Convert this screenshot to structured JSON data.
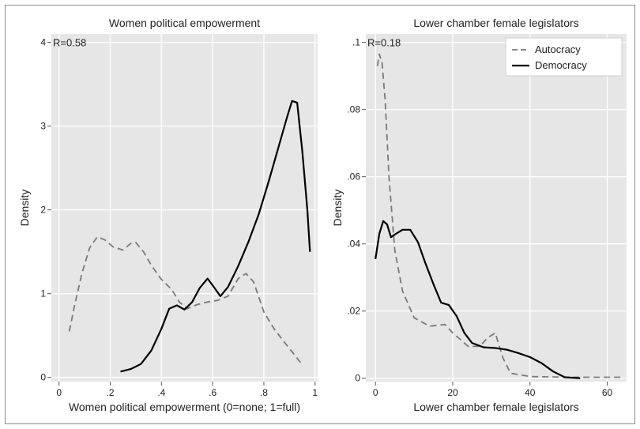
{
  "chart_data": [
    {
      "type": "line",
      "title": "Women political empowerment",
      "xlabel": "Women political empowerment (0=none; 1=full)",
      "ylabel": "Density",
      "annotation": "R=0.58",
      "xlim": [
        -0.03,
        1.01
      ],
      "ylim": [
        -0.05,
        4.1
      ],
      "xticks": [
        0,
        0.2,
        0.4,
        0.6,
        0.8,
        1
      ],
      "xtick_labels": [
        "0",
        ".2",
        ".4",
        ".6",
        ".8",
        "1"
      ],
      "yticks": [
        0,
        1,
        2,
        3,
        4
      ],
      "ytick_labels": [
        "0",
        "1",
        "2",
        "3",
        "4"
      ],
      "grid": true,
      "series": [
        {
          "name": "Autocracy",
          "style": "dashed",
          "color": "#7a7a7a",
          "points": [
            [
              0.04,
              0.55
            ],
            [
              0.06,
              0.85
            ],
            [
              0.09,
              1.25
            ],
            [
              0.12,
              1.55
            ],
            [
              0.15,
              1.68
            ],
            [
              0.18,
              1.64
            ],
            [
              0.21,
              1.56
            ],
            [
              0.25,
              1.52
            ],
            [
              0.28,
              1.6
            ],
            [
              0.3,
              1.61
            ],
            [
              0.33,
              1.5
            ],
            [
              0.36,
              1.34
            ],
            [
              0.4,
              1.17
            ],
            [
              0.44,
              1.05
            ],
            [
              0.47,
              0.9
            ],
            [
              0.5,
              0.82
            ],
            [
              0.54,
              0.87
            ],
            [
              0.58,
              0.9
            ],
            [
              0.62,
              0.92
            ],
            [
              0.66,
              0.97
            ],
            [
              0.7,
              1.18
            ],
            [
              0.73,
              1.24
            ],
            [
              0.76,
              1.14
            ],
            [
              0.8,
              0.78
            ],
            [
              0.84,
              0.58
            ],
            [
              0.88,
              0.42
            ],
            [
              0.92,
              0.27
            ],
            [
              0.95,
              0.15
            ]
          ]
        },
        {
          "name": "Democracy",
          "style": "solid",
          "color": "#000000",
          "points": [
            [
              0.24,
              0.07
            ],
            [
              0.28,
              0.1
            ],
            [
              0.32,
              0.16
            ],
            [
              0.36,
              0.32
            ],
            [
              0.4,
              0.58
            ],
            [
              0.43,
              0.82
            ],
            [
              0.46,
              0.86
            ],
            [
              0.49,
              0.81
            ],
            [
              0.52,
              0.9
            ],
            [
              0.55,
              1.07
            ],
            [
              0.58,
              1.18
            ],
            [
              0.6,
              1.1
            ],
            [
              0.63,
              0.97
            ],
            [
              0.66,
              1.08
            ],
            [
              0.7,
              1.33
            ],
            [
              0.74,
              1.62
            ],
            [
              0.78,
              1.95
            ],
            [
              0.82,
              2.35
            ],
            [
              0.86,
              2.78
            ],
            [
              0.89,
              3.1
            ],
            [
              0.91,
              3.3
            ],
            [
              0.93,
              3.28
            ],
            [
              0.95,
              2.7
            ],
            [
              0.97,
              2.0
            ],
            [
              0.98,
              1.5
            ]
          ]
        }
      ]
    },
    {
      "type": "line",
      "title": "Lower chamber female legislators",
      "xlabel": "Lower chamber female legislators",
      "ylabel": "Density",
      "annotation": "R=0.18",
      "xlim": [
        -2.5,
        65
      ],
      "ylim": [
        -0.001,
        0.1025
      ],
      "xticks": [
        0,
        20,
        40,
        60
      ],
      "xtick_labels": [
        "0",
        "20",
        "40",
        "60"
      ],
      "yticks": [
        0,
        0.02,
        0.04,
        0.06,
        0.08,
        0.1
      ],
      "ytick_labels": [
        "0",
        ".02",
        ".04",
        ".06",
        ".08",
        ".1"
      ],
      "grid": true,
      "legend": {
        "position": "top-right",
        "entries": [
          {
            "label": "Autocracy",
            "style": "dashed"
          },
          {
            "label": "Democracy",
            "style": "solid"
          }
        ]
      },
      "series": [
        {
          "name": "Autocracy",
          "style": "dashed",
          "color": "#7a7a7a",
          "points": [
            [
              0.5,
              0.093
            ],
            [
              1,
              0.0965
            ],
            [
              1.7,
              0.094
            ],
            [
              2.5,
              0.083
            ],
            [
              3.5,
              0.06
            ],
            [
              5,
              0.038
            ],
            [
              7,
              0.026
            ],
            [
              10,
              0.018
            ],
            [
              14,
              0.0155
            ],
            [
              18,
              0.016
            ],
            [
              20,
              0.0135
            ],
            [
              24,
              0.0095
            ],
            [
              27,
              0.0095
            ],
            [
              29,
              0.012
            ],
            [
              31,
              0.0135
            ],
            [
              33,
              0.006
            ],
            [
              35,
              0.0015
            ],
            [
              40,
              0.0005
            ],
            [
              50,
              0.0003
            ],
            [
              64,
              0.0003
            ]
          ]
        },
        {
          "name": "Democracy",
          "style": "solid",
          "color": "#000000",
          "points": [
            [
              0,
              0.0355
            ],
            [
              1,
              0.043
            ],
            [
              2,
              0.0468
            ],
            [
              3,
              0.0458
            ],
            [
              4,
              0.042
            ],
            [
              5,
              0.0428
            ],
            [
              7,
              0.0442
            ],
            [
              9,
              0.0442
            ],
            [
              11,
              0.0405
            ],
            [
              13,
              0.034
            ],
            [
              15,
              0.028
            ],
            [
              17,
              0.0225
            ],
            [
              19,
              0.0218
            ],
            [
              21,
              0.0185
            ],
            [
              23,
              0.0135
            ],
            [
              25,
              0.0105
            ],
            [
              28,
              0.0092
            ],
            [
              31,
              0.009
            ],
            [
              34,
              0.0085
            ],
            [
              37,
              0.0075
            ],
            [
              40,
              0.0063
            ],
            [
              43,
              0.0045
            ],
            [
              46,
              0.002
            ],
            [
              49,
              0.0003
            ],
            [
              53,
              0
            ]
          ]
        }
      ]
    }
  ]
}
